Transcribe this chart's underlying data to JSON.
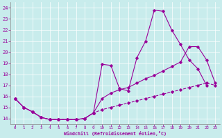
{
  "xlabel": "Windchill (Refroidissement éolien,°C)",
  "bg_color": "#c8ecec",
  "line_color": "#990099",
  "grid_color": "#ffffff",
  "xlim": [
    -0.5,
    23.5
  ],
  "ylim": [
    13.5,
    24.5
  ],
  "yticks": [
    14,
    15,
    16,
    17,
    18,
    19,
    20,
    21,
    22,
    23,
    24
  ],
  "xticks": [
    0,
    1,
    2,
    3,
    4,
    5,
    6,
    7,
    8,
    9,
    10,
    11,
    12,
    13,
    14,
    15,
    16,
    17,
    18,
    19,
    20,
    21,
    22,
    23
  ],
  "line1_x": [
    0,
    1,
    2,
    3,
    4,
    5,
    6,
    7,
    8,
    9,
    10,
    11,
    12,
    13,
    14,
    15,
    16,
    17,
    18,
    19,
    20,
    21,
    22,
    23
  ],
  "line1_y": [
    15.8,
    15.0,
    14.6,
    14.1,
    13.9,
    13.9,
    13.9,
    13.9,
    14.0,
    14.5,
    18.9,
    18.8,
    16.7,
    16.5,
    19.5,
    21.0,
    23.8,
    23.7,
    22.0,
    20.7,
    19.3,
    18.5,
    17.0,
    null
  ],
  "line2_x": [
    0,
    1,
    2,
    3,
    4,
    5,
    6,
    7,
    8,
    9,
    10,
    11,
    12,
    13,
    14,
    15,
    16,
    17,
    18,
    19,
    20,
    21,
    22,
    23
  ],
  "line2_y": [
    15.8,
    15.0,
    14.6,
    14.1,
    13.9,
    13.9,
    13.9,
    13.9,
    14.0,
    14.5,
    15.8,
    16.3,
    16.6,
    16.8,
    17.2,
    17.6,
    17.9,
    18.3,
    18.7,
    19.1,
    20.5,
    20.5,
    19.3,
    17.2
  ],
  "line3_x": [
    0,
    1,
    2,
    3,
    4,
    5,
    6,
    7,
    8,
    9,
    10,
    11,
    12,
    13,
    14,
    15,
    16,
    17,
    18,
    19,
    20,
    21,
    22,
    23
  ],
  "line3_y": [
    15.8,
    15.0,
    14.6,
    14.1,
    13.9,
    13.9,
    13.9,
    13.9,
    14.0,
    14.5,
    14.8,
    15.0,
    15.2,
    15.4,
    15.6,
    15.8,
    16.0,
    16.2,
    16.4,
    16.6,
    16.8,
    17.0,
    17.2,
    17.0
  ]
}
